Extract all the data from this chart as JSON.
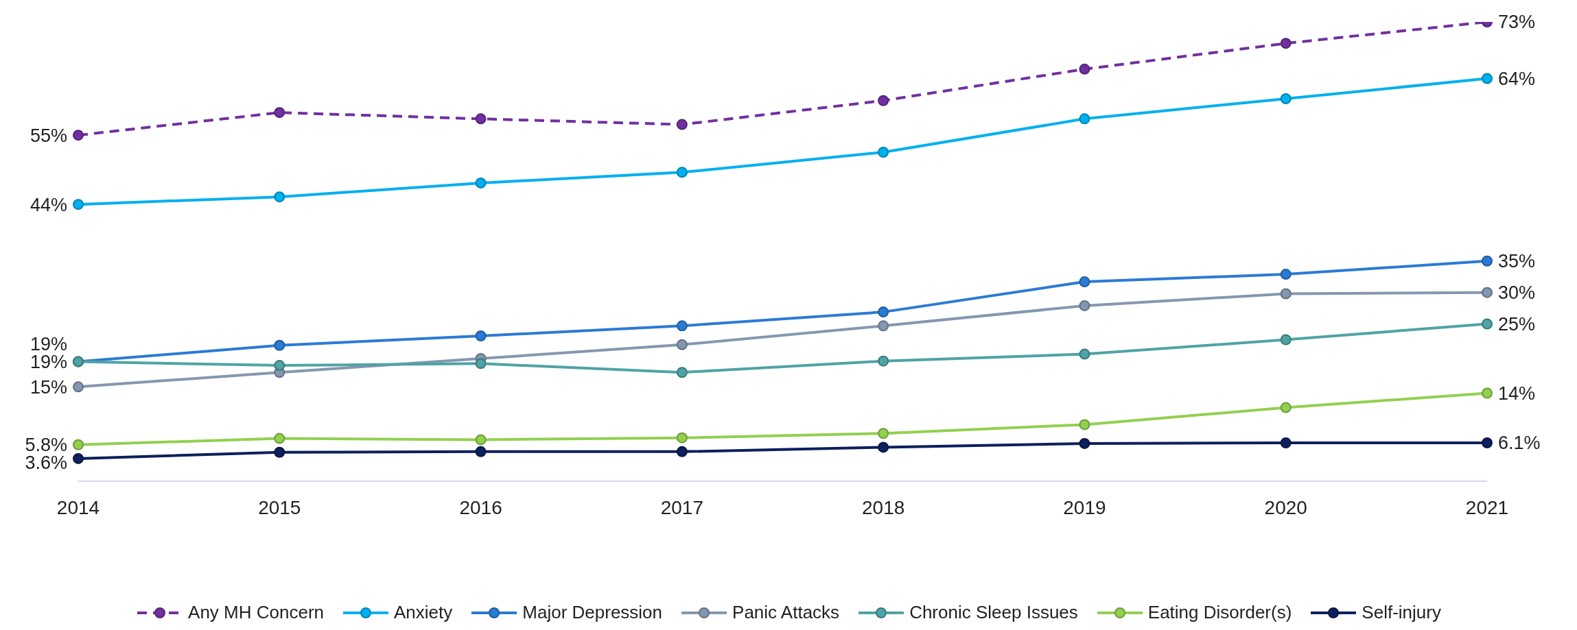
{
  "chart_data": {
    "type": "line",
    "categories": [
      "2014",
      "2015",
      "2016",
      "2017",
      "2018",
      "2019",
      "2020",
      "2021"
    ],
    "tick_labels": "x",
    "grid": false,
    "legend": "bottom",
    "marker": "circle",
    "line_style": "solid",
    "series": [
      {
        "name": "Any MH Concern",
        "color": "#7030a0",
        "line_style": "dashed",
        "values": [
          55,
          58.6,
          57.6,
          56.7,
          60.5,
          65.5,
          69.6,
          73
        ],
        "value_labels": [
          "55%",
          null,
          null,
          null,
          null,
          null,
          null,
          "73%"
        ]
      },
      {
        "name": "Anxiety",
        "color": "#00b0f0",
        "values": [
          44,
          45.2,
          47.4,
          49.1,
          52.3,
          57.6,
          60.8,
          64
        ],
        "value_labels": [
          "44%",
          null,
          null,
          null,
          null,
          null,
          null,
          "64%"
        ]
      },
      {
        "name": "Major Depression",
        "color": "#2b7bd4",
        "values": [
          19,
          21.6,
          23.1,
          24.7,
          26.9,
          31.7,
          32.9,
          35
        ],
        "value_labels": [
          "19%",
          null,
          null,
          null,
          null,
          null,
          null,
          "35%"
        ]
      },
      {
        "name": "Panic Attacks",
        "color": "#8497b0",
        "values": [
          15,
          17.3,
          19.5,
          21.7,
          24.7,
          27.9,
          29.8,
          30
        ],
        "value_labels": [
          "15%",
          null,
          null,
          null,
          null,
          null,
          null,
          "30%"
        ]
      },
      {
        "name": "Chronic Sleep Issues",
        "color": "#4fa3a5",
        "values": [
          19,
          18.4,
          18.7,
          17.3,
          19.1,
          20.2,
          22.5,
          25
        ],
        "value_labels": [
          "19%",
          null,
          null,
          null,
          null,
          null,
          null,
          "25%"
        ]
      },
      {
        "name": "Eating Disorder(s)",
        "color": "#92d050",
        "values": [
          5.8,
          6.8,
          6.6,
          6.9,
          7.6,
          9,
          11.7,
          14
        ],
        "value_labels": [
          "5.8%",
          null,
          null,
          null,
          null,
          null,
          null,
          "14%"
        ]
      },
      {
        "name": "Self-injury",
        "color": "#0d1f5c",
        "values": [
          3.6,
          4.6,
          4.7,
          4.7,
          5.4,
          6,
          6.1,
          6.1
        ],
        "value_labels": [
          "3.6%",
          null,
          null,
          null,
          null,
          null,
          null,
          "6.1%"
        ]
      }
    ]
  }
}
